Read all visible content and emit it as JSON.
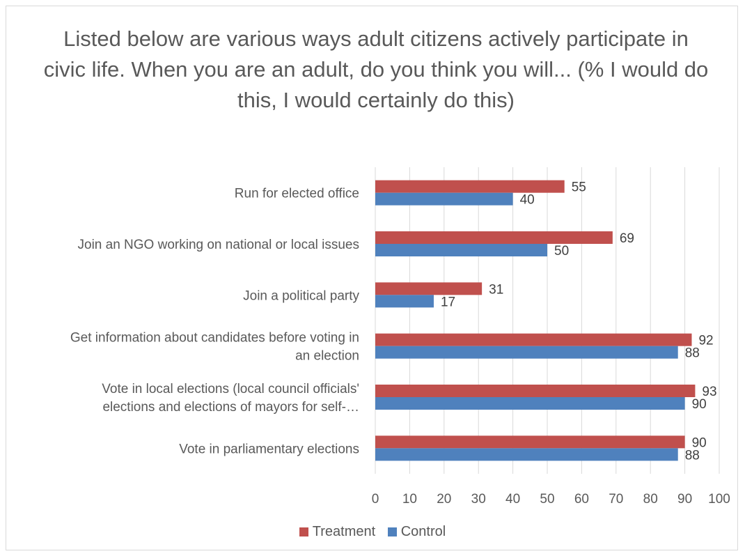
{
  "chart_data": {
    "type": "bar",
    "orientation": "horizontal",
    "title": "Listed below are various ways adult citizens actively participate in civic life. When you are an adult, do you think you will... (% I would do this, I would certainly do this)",
    "categories": [
      {
        "lines": [
          "Run for elected office"
        ]
      },
      {
        "lines": [
          "Join an NGO working on national or local issues"
        ]
      },
      {
        "lines": [
          "Join a political party"
        ]
      },
      {
        "lines": [
          "Get information about candidates before voting in",
          "an election"
        ]
      },
      {
        "lines": [
          "Vote in local elections (local council officials'",
          "elections and elections of mayors for self-…"
        ]
      },
      {
        "lines": [
          "Vote in parliamentary elections"
        ]
      }
    ],
    "series": [
      {
        "name": "Treatment",
        "color": "#c0504d",
        "values": [
          55,
          69,
          31,
          92,
          93,
          90
        ],
        "labels": [
          "55",
          "69",
          "31",
          "92",
          "93",
          "90"
        ]
      },
      {
        "name": "Control",
        "color": "#4f81bd",
        "values": [
          40,
          50,
          17,
          88,
          90,
          88
        ],
        "labels": [
          "40",
          "50",
          "17",
          "88",
          "90",
          "88"
        ]
      }
    ],
    "xlim": [
      0,
      100
    ],
    "xticks": [
      "0",
      "10",
      "20",
      "30",
      "40",
      "50",
      "60",
      "70",
      "80",
      "90",
      "100"
    ],
    "grid": true,
    "legend_position": "bottom"
  }
}
